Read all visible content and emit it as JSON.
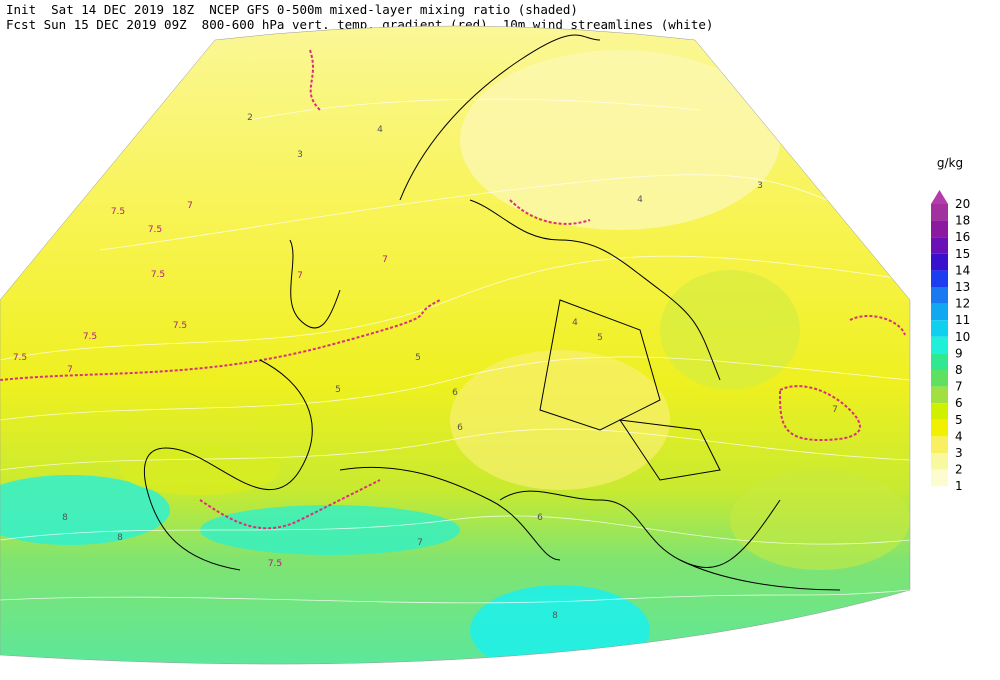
{
  "header": {
    "line1": "Init  Sat 14 DEC 2019 18Z  NCEP GFS 0-500m mixed-layer mixing ratio (shaded)",
    "line2": "Fcst Sun 15 DEC 2019 09Z  800-600 hPa vert. temp. gradient (red), 10m wind streamlines (white)"
  },
  "legend": {
    "unit": "g/kg",
    "levels": [
      20,
      18,
      16,
      15,
      14,
      13,
      12,
      11,
      10,
      9,
      8,
      7,
      6,
      5,
      4,
      3,
      2,
      1
    ],
    "colors": [
      "#b23cab",
      "#a2309f",
      "#8b1aa0",
      "#6a10b8",
      "#3a10d0",
      "#1e3cf0",
      "#1a78f0",
      "#10a8f0",
      "#10d0f0",
      "#20f0d8",
      "#30e890",
      "#60e060",
      "#a0e040",
      "#d0f000",
      "#f0f000",
      "#f8f060",
      "#f8f8a0",
      "#fcfcd0"
    ]
  },
  "map": {
    "contour_labels": [
      "7.5",
      "7.5",
      "7.5",
      "7.5",
      "7.5",
      "7.5",
      "7",
      "7",
      "7",
      "7",
      "7.5",
      "5",
      "5",
      "5",
      "4",
      "4",
      "4",
      "3",
      "3",
      "2",
      "6",
      "6",
      "8",
      "8",
      "8",
      "7",
      "7",
      "6"
    ]
  }
}
